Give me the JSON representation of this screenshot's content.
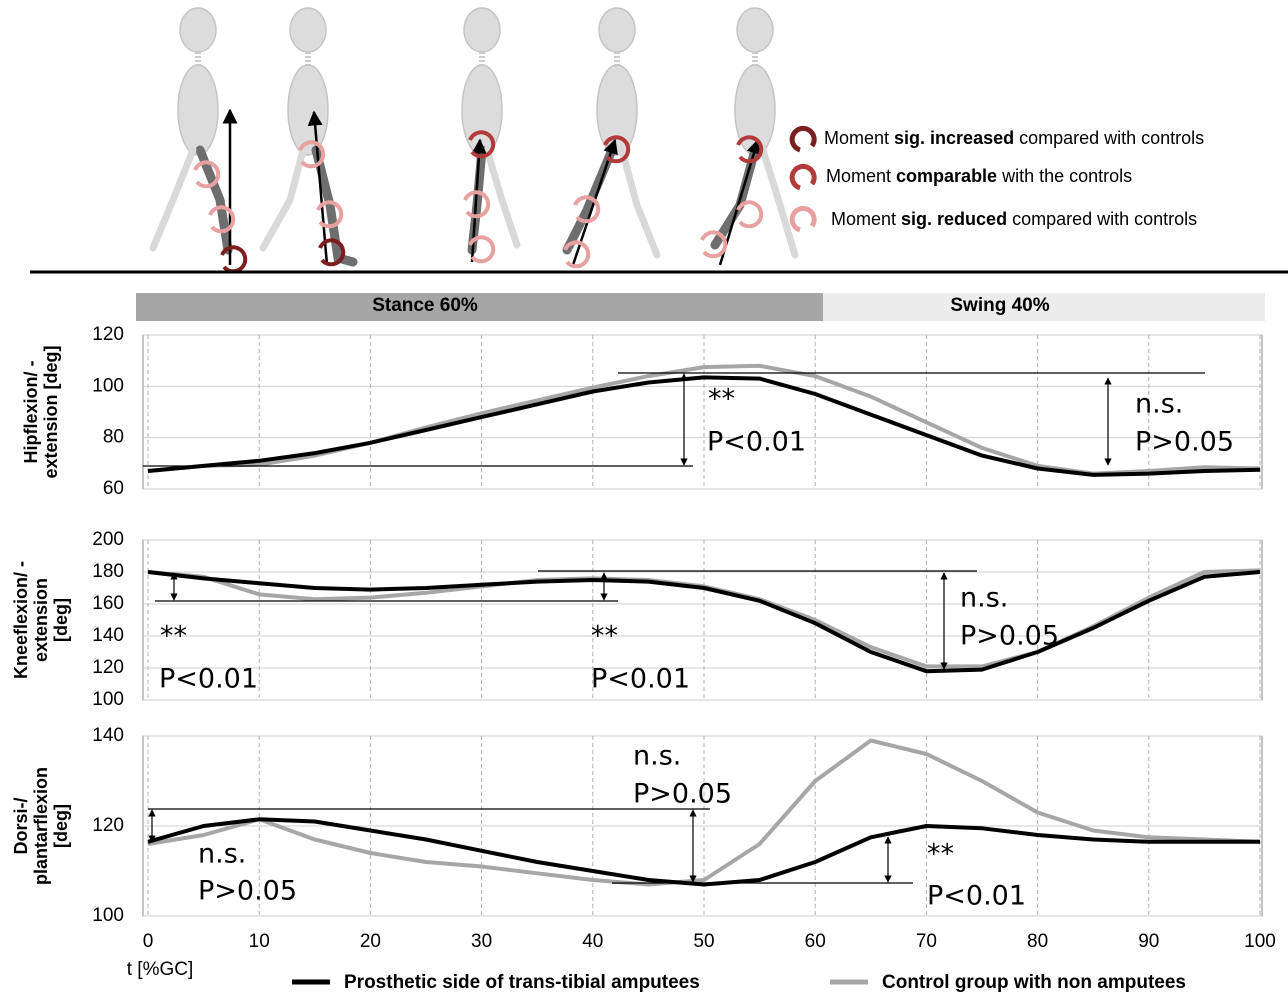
{
  "moment_legend": [
    [
      "Moment ",
      "sig. increased",
      " compared with controls"
    ],
    [
      "Moment ",
      "comparable",
      " with the controls"
    ],
    [
      "Moment ",
      "sig. reduced",
      " compared with controls"
    ]
  ],
  "phases": [
    "Stance 60%",
    "Swing 40%"
  ],
  "chart_data": [
    {
      "type": "line",
      "ylabel": [
        "Hipflexion/ -",
        "extension [deg]"
      ],
      "x": [
        0,
        5,
        10,
        15,
        20,
        25,
        30,
        35,
        40,
        45,
        50,
        55,
        60,
        65,
        70,
        75,
        80,
        85,
        90,
        95,
        100
      ],
      "series": [
        {
          "name": "Prosthetic side of trans-tibial amputees",
          "color": "#000000",
          "values": [
            67,
            69,
            71,
            74,
            78,
            83,
            88,
            93,
            98,
            101.5,
            103.5,
            103,
            97,
            89,
            81,
            73,
            68,
            65.5,
            66,
            67,
            67.5
          ]
        },
        {
          "name": "Control group with non amputees",
          "color": "#a6a6a6",
          "values": [
            67,
            69,
            69.5,
            73,
            78,
            84,
            89.5,
            94.5,
            99.5,
            104,
            107.5,
            108,
            104,
            96,
            86,
            76,
            69,
            66,
            67,
            68.5,
            68
          ]
        }
      ],
      "xlim": [
        0,
        100
      ],
      "xticks": [
        0,
        10,
        20,
        30,
        40,
        50,
        60,
        70,
        80,
        90,
        100
      ],
      "xtick_labels": false,
      "ylim": [
        60,
        120
      ],
      "yticks": [
        60,
        80,
        100,
        120
      ],
      "grid": true,
      "annotations": [
        "**",
        "P<0.01",
        "n.s.",
        "P>0.05"
      ]
    },
    {
      "type": "line",
      "ylabel": [
        "Kneeflexion/ -",
        "extension",
        "[deg]"
      ],
      "x": [
        0,
        5,
        10,
        15,
        20,
        25,
        30,
        35,
        40,
        45,
        50,
        55,
        60,
        65,
        70,
        75,
        80,
        85,
        90,
        95,
        100
      ],
      "series": [
        {
          "name": "Prosthetic side of trans-tibial amputees",
          "color": "#000000",
          "values": [
            180,
            176,
            173,
            170,
            169,
            170,
            172,
            174,
            175,
            174,
            170,
            162,
            148,
            130,
            118,
            119,
            130,
            145,
            162,
            177,
            180
          ]
        },
        {
          "name": "Control group with non amputees",
          "color": "#a6a6a6",
          "values": [
            180,
            177,
            166,
            163,
            164,
            167,
            171,
            175,
            176,
            175,
            171,
            163,
            150,
            133,
            121,
            121,
            130,
            146,
            164,
            180,
            181
          ]
        }
      ],
      "xlim": [
        0,
        100
      ],
      "xticks": [
        0,
        10,
        20,
        30,
        40,
        50,
        60,
        70,
        80,
        90,
        100
      ],
      "xtick_labels": false,
      "ylim": [
        100,
        200
      ],
      "yticks": [
        100,
        120,
        140,
        160,
        180,
        200
      ],
      "grid": true,
      "annotations": [
        "**",
        "P<0.01",
        "**",
        "P<0.01",
        "n.s.",
        "P>0.05"
      ]
    },
    {
      "type": "line",
      "ylabel": [
        "Dorsi-/",
        "plantarflexion",
        "[deg]"
      ],
      "xlabel": "t [%GC]",
      "x": [
        0,
        5,
        10,
        15,
        20,
        25,
        30,
        35,
        40,
        45,
        50,
        55,
        60,
        65,
        70,
        75,
        80,
        85,
        90,
        95,
        100
      ],
      "series": [
        {
          "name": "Prosthetic side of trans-tibial amputees",
          "color": "#000000",
          "values": [
            116.5,
            120,
            121.5,
            121,
            119,
            117,
            114.5,
            112,
            110,
            108,
            107,
            108,
            112,
            117.5,
            120,
            119.5,
            118,
            117,
            116.5,
            116.5,
            116.5
          ]
        },
        {
          "name": "Control group with non amputees",
          "color": "#a6a6a6",
          "values": [
            116,
            118,
            121.5,
            117,
            114,
            112,
            111,
            109.5,
            108,
            107,
            108,
            116,
            130,
            139,
            136,
            130,
            123,
            119,
            117.5,
            117,
            116.5
          ]
        }
      ],
      "xlim": [
        0,
        100
      ],
      "xticks": [
        0,
        10,
        20,
        30,
        40,
        50,
        60,
        70,
        80,
        90,
        100
      ],
      "xtick_labels": true,
      "ylim": [
        100,
        140
      ],
      "yticks": [
        100,
        120,
        140
      ],
      "grid": true,
      "annotations": [
        "n.s.",
        "P>0.05",
        "n.s.",
        "P>0.05",
        "**",
        "P<0.01"
      ]
    }
  ]
}
